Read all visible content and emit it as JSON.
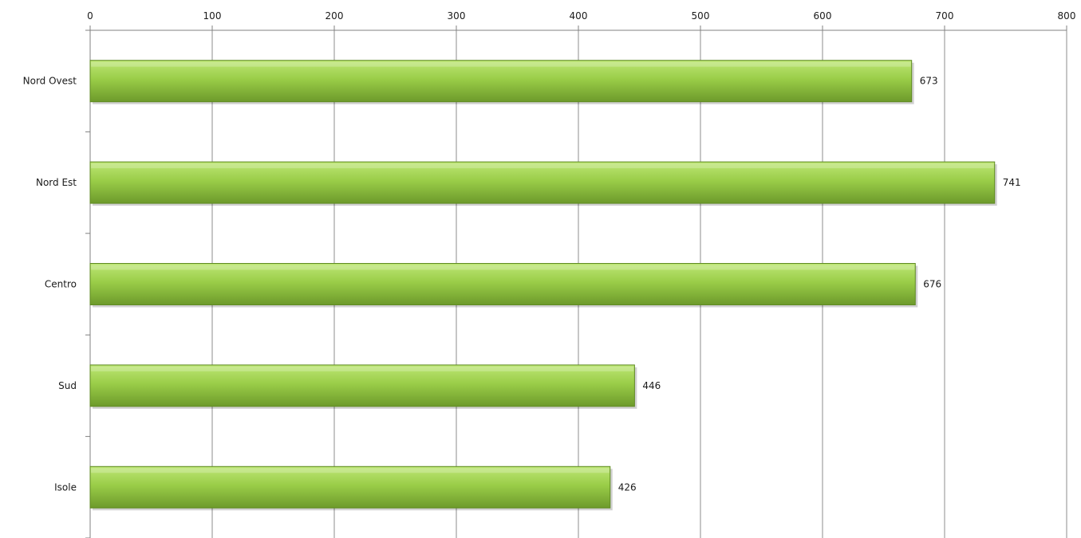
{
  "chart_data": {
    "type": "bar",
    "orientation": "horizontal",
    "categories": [
      "Nord Ovest",
      "Nord Est",
      "Centro",
      "Sud",
      "Isole"
    ],
    "values": [
      673,
      741,
      676,
      446,
      426
    ],
    "data_labels": [
      "673",
      "741",
      "676",
      "446",
      "426"
    ],
    "x_ticks": [
      "0",
      "100",
      "200",
      "300",
      "400",
      "500",
      "600",
      "700",
      "800"
    ],
    "xlim": [
      0,
      800
    ],
    "x_axis_position": "top",
    "grid": "vertical",
    "legend": "none",
    "colors": {
      "bar_light": "#bde675",
      "bar_mid": "#9acd48",
      "bar_dark": "#6d9a2b",
      "bar_edge": "#5f8a22",
      "grid": "#8c8c8c",
      "axis": "#808080"
    }
  }
}
